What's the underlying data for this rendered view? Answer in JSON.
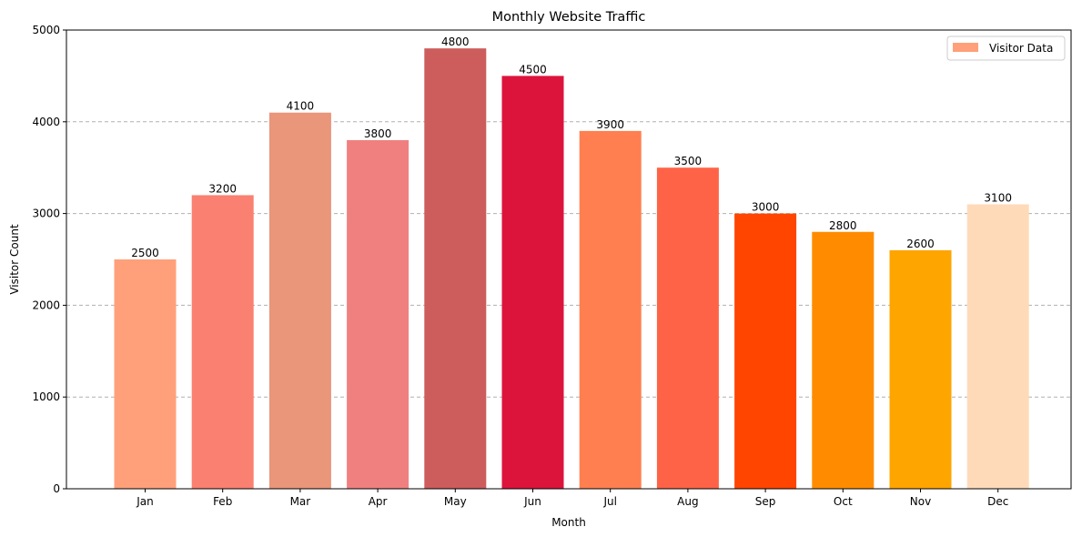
{
  "chart_data": {
    "type": "bar",
    "title": "Monthly Website Traffic",
    "xlabel": "Month",
    "ylabel": "Visitor Count",
    "categories": [
      "Jan",
      "Feb",
      "Mar",
      "Apr",
      "May",
      "Jun",
      "Jul",
      "Aug",
      "Sep",
      "Oct",
      "Nov",
      "Dec"
    ],
    "values": [
      2500,
      3200,
      4100,
      3800,
      4800,
      4500,
      3900,
      3500,
      3000,
      2800,
      2600,
      3100
    ],
    "colors": [
      "#FFA07A",
      "#FA8072",
      "#E9967A",
      "#F08080",
      "#CD5C5C",
      "#DC143C",
      "#FF7F50",
      "#FF6347",
      "#FF4500",
      "#FF8C00",
      "#FFA500",
      "#FFDAB9"
    ],
    "ylim": [
      0,
      5000
    ],
    "yticks": [
      0,
      1000,
      2000,
      3000,
      4000,
      5000
    ],
    "grid": "y-dashed",
    "legend": {
      "label": "Visitor Data",
      "color": "#FFA07A",
      "placement": "top-right"
    }
  }
}
